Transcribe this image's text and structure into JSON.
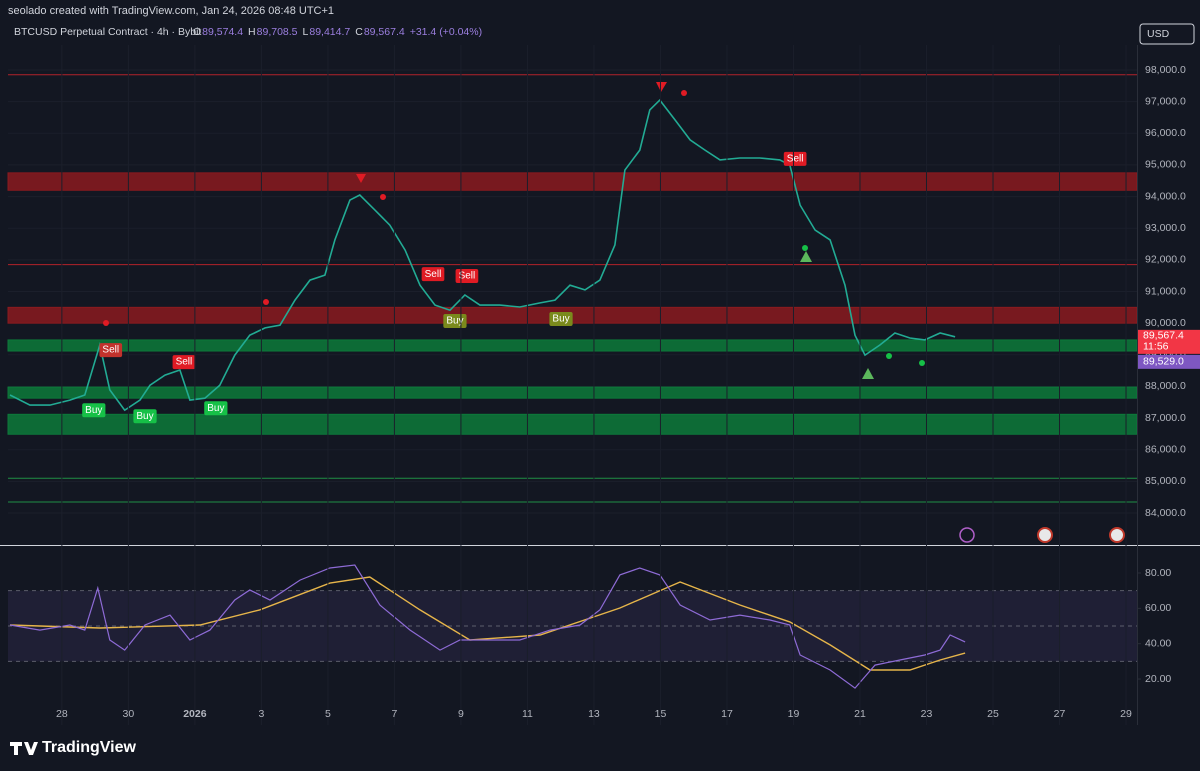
{
  "header": {
    "attribution": "seolado created with TradingView.com, Jan 24, 2026 08:48 UTC+1",
    "symbol": "BTCUSD Perpetual Contract · 4h · Bybit",
    "ohlc": [
      {
        "key": "O",
        "value": "89,574.4"
      },
      {
        "key": "H",
        "value": "89,708.5"
      },
      {
        "key": "L",
        "value": "89,414.7"
      },
      {
        "key": "C",
        "value": "89,567.4"
      }
    ],
    "change": "+31.4 (+0.04%)",
    "currency": "USD"
  },
  "xlim": [
    -1.62,
    32.33
  ],
  "xticks": [
    {
      "value": 0,
      "label": "28"
    },
    {
      "value": 2,
      "label": "30"
    },
    {
      "value": 4,
      "label": "2026"
    },
    {
      "value": 6,
      "label": "3"
    },
    {
      "value": 8,
      "label": "5"
    },
    {
      "value": 10,
      "label": "7"
    },
    {
      "value": 12,
      "label": "9"
    },
    {
      "value": 14,
      "label": "11"
    },
    {
      "value": 16,
      "label": "13"
    },
    {
      "value": 18,
      "label": "15"
    },
    {
      "value": 20,
      "label": "17"
    },
    {
      "value": 22,
      "label": "19"
    },
    {
      "value": 24,
      "label": "21"
    },
    {
      "value": 26,
      "label": "23"
    },
    {
      "value": 28,
      "label": "25"
    },
    {
      "value": 30,
      "label": "27"
    },
    {
      "value": 32,
      "label": "29"
    }
  ],
  "price_chart": {
    "type": "line",
    "color": "#22ab94",
    "x": [
      -1.56,
      -0.96,
      -0.36,
      0.24,
      0.69,
      1.14,
      1.44,
      1.89,
      2.35,
      2.65,
      3.1,
      3.55,
      3.85,
      4.3,
      4.75,
      5.2,
      5.65,
      6.11,
      6.56,
      7.01,
      7.46,
      7.91,
      8.21,
      8.66,
      8.96,
      9.41,
      9.86,
      10.32,
      10.77,
      11.22,
      11.67,
      12.12,
      12.57,
      13.17,
      13.77,
      14.38,
      14.83,
      15.28,
      15.73,
      16.18,
      16.63,
      16.93,
      17.38,
      17.68,
      17.98,
      18.44,
      18.89,
      19.34,
      19.79,
      20.39,
      20.99,
      21.59,
      21.89,
      22.2,
      22.65,
      23.1,
      23.55,
      23.85,
      24.15,
      24.6,
      25.05,
      25.5,
      25.95,
      26.41,
      26.86
    ],
    "close": [
      87730,
      87410,
      87410,
      87570,
      87730,
      89310,
      87890,
      87250,
      87570,
      88040,
      88360,
      88520,
      87570,
      87630,
      88040,
      88990,
      89620,
      89850,
      89940,
      90730,
      91360,
      91520,
      92630,
      93890,
      94050,
      93580,
      93100,
      92310,
      91200,
      90570,
      90410,
      90890,
      90570,
      90570,
      90510,
      90640,
      90730,
      91200,
      91050,
      91360,
      92470,
      94840,
      95470,
      96740,
      97050,
      96420,
      95790,
      95470,
      95160,
      95220,
      95220,
      95160,
      95000,
      93730,
      92940,
      92630,
      91200,
      89620,
      88990,
      89310,
      89690,
      89530,
      89470,
      89690,
      89570
    ],
    "ylim": [
      82990,
      98790
    ],
    "yticks": [
      {
        "value": 84000,
        "label": "84,000.0"
      },
      {
        "value": 85000,
        "label": "85,000.0"
      },
      {
        "value": 86000,
        "label": "86,000.0"
      },
      {
        "value": 87000,
        "label": "87,000.0"
      },
      {
        "value": 88000,
        "label": "88,000.0"
      },
      {
        "value": 89000,
        "label": "89,000.0"
      },
      {
        "value": 90000,
        "label": "90,000.0"
      },
      {
        "value": 91000,
        "label": "91,000.0"
      },
      {
        "value": 92000,
        "label": "92,000.0"
      },
      {
        "value": 93000,
        "label": "93,000.0"
      },
      {
        "value": 94000,
        "label": "94,000.0"
      },
      {
        "value": 95000,
        "label": "95,000.0"
      },
      {
        "value": 96000,
        "label": "96,000.0"
      },
      {
        "value": 97000,
        "label": "97,000.0"
      },
      {
        "value": 98000,
        "label": "98,000.0"
      }
    ],
    "zones": [
      {
        "low": 94200,
        "high": 94750,
        "color": "#8b1a1f"
      },
      {
        "low": 90000,
        "high": 90500,
        "color": "#8b1a1f"
      },
      {
        "low": 89120,
        "high": 89470,
        "color": "#0d7a3a"
      },
      {
        "low": 87630,
        "high": 87980,
        "color": "#0d7a3a"
      },
      {
        "low": 86490,
        "high": 87120,
        "color": "#0d7a3a"
      }
    ],
    "levels": [
      {
        "value": 97850,
        "color": "#b2222a"
      },
      {
        "value": 91850,
        "color": "#b2222a"
      },
      {
        "value": 85100,
        "color": "#1f8f45"
      },
      {
        "value": 84350,
        "color": "#1f8f45"
      }
    ],
    "signals": [
      {
        "label": "Buy",
        "day": 0.96,
        "price": 87250,
        "color": "#16c047"
      },
      {
        "label": "Buy",
        "day": 2.5,
        "price": 87060,
        "color": "#16c047"
      },
      {
        "label": "Buy",
        "day": 4.63,
        "price": 87310,
        "color": "#16c047"
      },
      {
        "label": "Buy",
        "day": 11.82,
        "price": 90070,
        "color": "#7a8a1c"
      },
      {
        "label": "Buy",
        "day": 15.01,
        "price": 90130,
        "color": "#7a8a1c"
      },
      {
        "label": "Sell",
        "day": 1.47,
        "price": 89150,
        "color": "#c2322c"
      },
      {
        "label": "Sell",
        "day": 3.67,
        "price": 88770,
        "color": "#e01b24"
      },
      {
        "label": "Sell",
        "day": 11.16,
        "price": 91550,
        "color": "#e01b24"
      },
      {
        "label": "Sell",
        "day": 12.18,
        "price": 91490,
        "color": "#e01b24"
      },
      {
        "label": "Sell",
        "day": 22.05,
        "price": 95190,
        "color": "#e01b24"
      }
    ],
    "last_price": {
      "value": 89567.4,
      "label": "89,567.4"
    },
    "countdown": "11:56",
    "bid_price": {
      "value": 89529.0,
      "label": "89,529.0"
    }
  },
  "rsi_chart": {
    "type": "line",
    "color": "#8e6bd6",
    "ma_color": "#e6b54a",
    "x": [
      -1.56,
      -0.66,
      0.24,
      0.69,
      1.08,
      1.44,
      1.89,
      2.5,
      3.25,
      3.85,
      4.45,
      5.2,
      5.65,
      6.26,
      7.16,
      8.06,
      8.81,
      9.56,
      10.47,
      11.37,
      11.97,
      12.87,
      13.77,
      14.68,
      15.58,
      16.18,
      16.78,
      17.38,
      17.98,
      18.59,
      19.49,
      20.39,
      21.29,
      21.89,
      22.2,
      23.1,
      23.85,
      24.45,
      25.2,
      25.95,
      26.41,
      26.71,
      27.16
    ],
    "values": [
      50.6,
      47.7,
      50.6,
      47.7,
      71.5,
      42.1,
      36.4,
      50.6,
      56.2,
      42.1,
      47.7,
      64.7,
      70.4,
      64.7,
      76.0,
      82.8,
      84.5,
      61.9,
      47.7,
      36.4,
      42.1,
      42.1,
      42.1,
      47.7,
      50.6,
      59.1,
      78.9,
      82.8,
      78.9,
      61.9,
      53.4,
      56.2,
      53.4,
      50.6,
      33.6,
      25.1,
      14.9,
      27.9,
      30.8,
      33.6,
      36.4,
      44.9,
      41.0
    ],
    "ma_x": [
      -1.56,
      1.14,
      4.15,
      5.95,
      8.06,
      9.26,
      10.77,
      12.27,
      14.38,
      16.78,
      18.59,
      20.39,
      21.89,
      23.1,
      24.3,
      25.5,
      26.41,
      27.16
    ],
    "ma": [
      50.6,
      48.9,
      50.6,
      59.1,
      74.3,
      77.7,
      59.1,
      42.1,
      44.9,
      60.2,
      74.9,
      61.9,
      52.3,
      39.3,
      25.1,
      25.1,
      30.8,
      34.7
    ],
    "ylim": [
      -6,
      94.7
    ],
    "yticks": [
      {
        "value": 20,
        "label": "20.00"
      },
      {
        "value": 40,
        "label": "40.00"
      },
      {
        "value": 60,
        "label": "60.00"
      },
      {
        "value": 80,
        "label": "80.00"
      }
    ],
    "bands": [
      70,
      50,
      30
    ]
  },
  "footer": {
    "brand": "TradingView"
  }
}
